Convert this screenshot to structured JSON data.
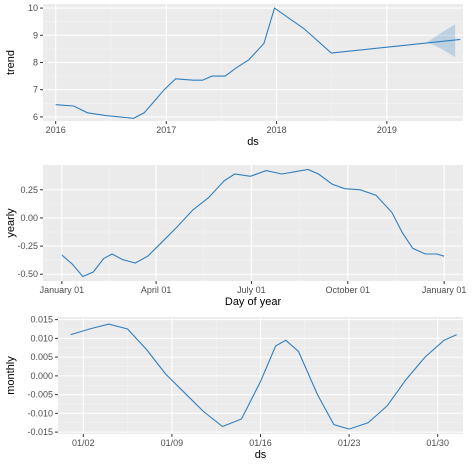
{
  "colors": {
    "line": "#2f7fc1",
    "panel": "#ebebeb",
    "grid": "#ffffff"
  },
  "chart_data": [
    {
      "id": "trend",
      "type": "line",
      "xlabel": "ds",
      "ylabel": "trend",
      "x_type": "date",
      "x_ticks": [
        {
          "x": "2016-01-01",
          "label": "2016"
        },
        {
          "x": "2017-01-01",
          "label": "2017"
        },
        {
          "x": "2018-01-01",
          "label": "2018"
        },
        {
          "x": "2019-01-01",
          "label": "2019"
        }
      ],
      "y_ticks": [
        {
          "y": 6,
          "label": "6"
        },
        {
          "y": 7,
          "label": "7"
        },
        {
          "y": 8,
          "label": "8"
        },
        {
          "y": 9,
          "label": "9"
        },
        {
          "y": 10,
          "label": "10"
        }
      ],
      "xlim": [
        "2015-11-20",
        "2019-09-10"
      ],
      "ylim": [
        5.85,
        10.15
      ],
      "grid": true,
      "series": [
        {
          "points": [
            [
              "2016-01-01",
              6.45
            ],
            [
              "2016-03-01",
              6.4
            ],
            [
              "2016-04-15",
              6.15
            ],
            [
              "2016-06-15",
              6.05
            ],
            [
              "2016-09-15",
              5.95
            ],
            [
              "2016-10-20",
              6.15
            ],
            [
              "2016-11-20",
              6.55
            ],
            [
              "2016-12-25",
              7.0
            ],
            [
              "2017-02-01",
              7.4
            ],
            [
              "2017-04-01",
              7.35
            ],
            [
              "2017-05-01",
              7.35
            ],
            [
              "2017-06-01",
              7.5
            ],
            [
              "2017-07-15",
              7.5
            ],
            [
              "2017-08-20",
              7.8
            ],
            [
              "2017-10-01",
              8.1
            ],
            [
              "2017-11-20",
              8.7
            ],
            [
              "2017-12-25",
              10.0
            ],
            [
              "2018-04-01",
              9.25
            ],
            [
              "2018-07-01",
              8.35
            ],
            [
              "2019-09-01",
              8.85
            ]
          ]
        }
      ],
      "uncertainty": [
        [
          "2019-05-15",
          8.75,
          8.75
        ],
        [
          "2019-07-01",
          8.5,
          9.1
        ],
        [
          "2019-08-15",
          8.2,
          9.4
        ]
      ]
    },
    {
      "id": "yearly",
      "type": "line",
      "xlabel": "Day of year",
      "ylabel": "yearly",
      "x_type": "day",
      "x_ticks": [
        {
          "x": 0,
          "label": "January 01"
        },
        {
          "x": 90,
          "label": "April 01"
        },
        {
          "x": 181,
          "label": "July 01"
        },
        {
          "x": 273,
          "label": "October 01"
        },
        {
          "x": 365,
          "label": "January 01"
        }
      ],
      "y_ticks": [
        {
          "y": -0.5,
          "label": "-0.50"
        },
        {
          "y": -0.25,
          "label": "-0.25"
        },
        {
          "y": 0.0,
          "label": "0.00"
        },
        {
          "y": 0.25,
          "label": "0.25"
        }
      ],
      "xlim": [
        -18,
        383
      ],
      "ylim": [
        -0.56,
        0.47
      ],
      "grid": true,
      "series": [
        {
          "points": [
            [
              0,
              -0.33
            ],
            [
              10,
              -0.41
            ],
            [
              20,
              -0.52
            ],
            [
              30,
              -0.48
            ],
            [
              40,
              -0.36
            ],
            [
              48,
              -0.32
            ],
            [
              58,
              -0.37
            ],
            [
              70,
              -0.4
            ],
            [
              82,
              -0.34
            ],
            [
              95,
              -0.22
            ],
            [
              110,
              -0.08
            ],
            [
              125,
              0.07
            ],
            [
              140,
              0.18
            ],
            [
              155,
              0.33
            ],
            [
              165,
              0.39
            ],
            [
              180,
              0.37
            ],
            [
              195,
              0.42
            ],
            [
              210,
              0.39
            ],
            [
              222,
              0.41
            ],
            [
              235,
              0.43
            ],
            [
              245,
              0.39
            ],
            [
              258,
              0.3
            ],
            [
              270,
              0.26
            ],
            [
              285,
              0.25
            ],
            [
              300,
              0.2
            ],
            [
              315,
              0.05
            ],
            [
              325,
              -0.13
            ],
            [
              335,
              -0.27
            ],
            [
              347,
              -0.32
            ],
            [
              358,
              -0.32
            ],
            [
              365,
              -0.34
            ]
          ]
        }
      ]
    },
    {
      "id": "monthly",
      "type": "line",
      "xlabel": "ds",
      "ylabel": "monthly",
      "x_type": "day",
      "x_ticks": [
        {
          "x": 2,
          "label": "01/02"
        },
        {
          "x": 9,
          "label": "01/09"
        },
        {
          "x": 16,
          "label": "01/16"
        },
        {
          "x": 23,
          "label": "01/23"
        },
        {
          "x": 30,
          "label": "01/30"
        }
      ],
      "y_ticks": [
        {
          "y": 0.015,
          "label": "0.015"
        },
        {
          "y": 0.01,
          "label": "0.010"
        },
        {
          "y": 0.005,
          "label": "0.005"
        },
        {
          "y": 0.0,
          "label": "0.000"
        },
        {
          "y": -0.005,
          "label": "-0.005"
        },
        {
          "y": -0.01,
          "label": "-0.010"
        },
        {
          "y": -0.015,
          "label": "-0.015"
        }
      ],
      "xlim": [
        0.0,
        32.0
      ],
      "ylim": [
        -0.0155,
        0.0157
      ],
      "grid": true,
      "series": [
        {
          "points": [
            [
              1,
              0.011
            ],
            [
              2.5,
              0.0125
            ],
            [
              4,
              0.0138
            ],
            [
              5.5,
              0.0125
            ],
            [
              7,
              0.007
            ],
            [
              8.5,
              0.0005
            ],
            [
              10,
              -0.0045
            ],
            [
              11.5,
              -0.0095
            ],
            [
              13,
              -0.0135
            ],
            [
              14.5,
              -0.0115
            ],
            [
              16,
              -0.0015
            ],
            [
              17.2,
              0.008
            ],
            [
              18,
              0.0095
            ],
            [
              19,
              0.0065
            ],
            [
              20.5,
              -0.005
            ],
            [
              21.8,
              -0.013
            ],
            [
              23,
              -0.0142
            ],
            [
              24.5,
              -0.0125
            ],
            [
              26,
              -0.008
            ],
            [
              27.5,
              -0.001
            ],
            [
              29,
              0.005
            ],
            [
              30.5,
              0.0095
            ],
            [
              31.5,
              0.011
            ]
          ]
        }
      ]
    }
  ]
}
